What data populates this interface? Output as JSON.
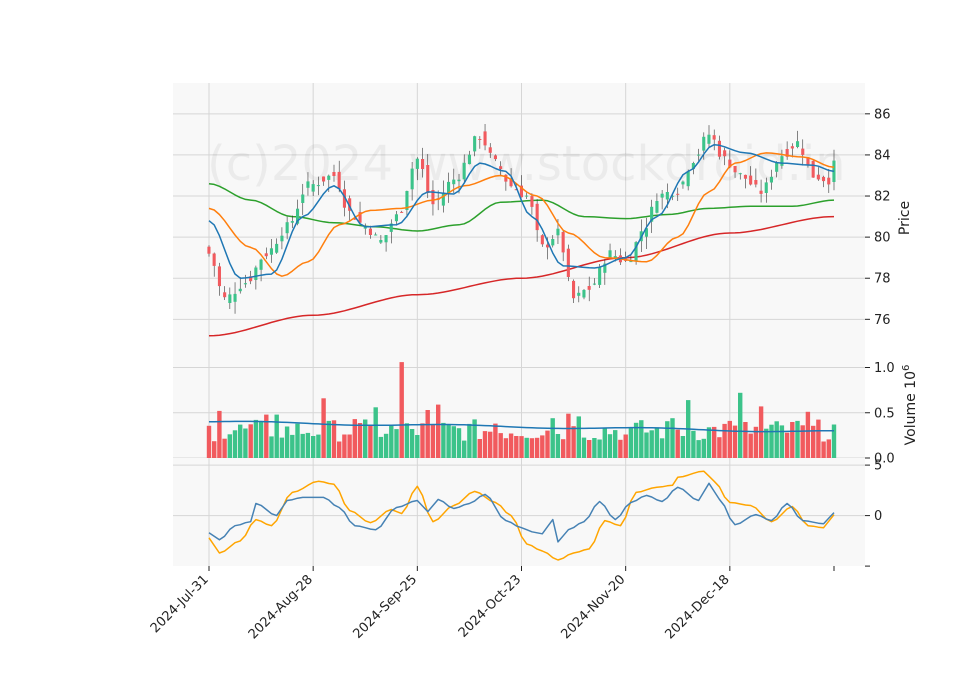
{
  "chart_data": {
    "type": "candlestick",
    "watermark": "(c)2024 www.stockdroid.in",
    "x_tick_labels": [
      "2024-Jul-31",
      "2024-Aug-28",
      "2024-Sep-25",
      "2024-Oct-23",
      "2024-Nov-20",
      "2024-Dec-18"
    ],
    "x_tick_index": [
      0,
      20,
      40,
      60,
      80,
      100
    ],
    "n_bars": 121,
    "colors": {
      "up": "#3cc38a",
      "down": "#f15a5e",
      "grid": "#d6d6d6",
      "panel_bg": "#f8f8f8",
      "ma_short": "#1f77b4",
      "ma_mid": "#ff7f0e",
      "ma_long": "#2ca02c",
      "ma_200": "#d62728",
      "osc_line": "#4682b4",
      "osc_signal": "#ffa500",
      "vol_ma": "#1f77b4"
    },
    "price_panel": {
      "ylabel": "Price",
      "ylim": [
        75,
        87.5
      ],
      "yticks": [
        76,
        78,
        80,
        82,
        84,
        86
      ],
      "anchors_close": [
        [
          0,
          79.2
        ],
        [
          3,
          77.0
        ],
        [
          7,
          77.8
        ],
        [
          11,
          79.2
        ],
        [
          15,
          80.5
        ],
        [
          19,
          82.5
        ],
        [
          24,
          83.0
        ],
        [
          27,
          81.2
        ],
        [
          30,
          80.5
        ],
        [
          33,
          79.8
        ],
        [
          36,
          81.0
        ],
        [
          40,
          83.8
        ],
        [
          43,
          81.6
        ],
        [
          47,
          82.8
        ],
        [
          52,
          84.9
        ],
        [
          55,
          83.6
        ],
        [
          58,
          82.5
        ],
        [
          61,
          82.0
        ],
        [
          64,
          79.5
        ],
        [
          67,
          80.2
        ],
        [
          70,
          77.0
        ],
        [
          73,
          77.5
        ],
        [
          77,
          79.2
        ],
        [
          80,
          78.8
        ],
        [
          84,
          80.6
        ],
        [
          86,
          82.0
        ],
        [
          90,
          82.3
        ],
        [
          93,
          83.8
        ],
        [
          96,
          85.0
        ],
        [
          99,
          83.8
        ],
        [
          102,
          83.0
        ],
        [
          106,
          82.2
        ],
        [
          110,
          84.0
        ],
        [
          113,
          84.6
        ],
        [
          116,
          83.0
        ],
        [
          119,
          82.8
        ],
        [
          120,
          83.5
        ]
      ],
      "ma_short_anchors": [
        [
          0,
          80.8
        ],
        [
          6,
          78.0
        ],
        [
          12,
          78.2
        ],
        [
          18,
          81.0
        ],
        [
          24,
          82.5
        ],
        [
          30,
          80.5
        ],
        [
          36,
          80.6
        ],
        [
          42,
          82.2
        ],
        [
          47,
          82.1
        ],
        [
          52,
          83.6
        ],
        [
          57,
          83.2
        ],
        [
          62,
          81.0
        ],
        [
          68,
          78.6
        ],
        [
          74,
          78.5
        ],
        [
          80,
          79.0
        ],
        [
          86,
          81.0
        ],
        [
          92,
          83.2
        ],
        [
          97,
          84.5
        ],
        [
          103,
          84.1
        ],
        [
          110,
          83.6
        ],
        [
          116,
          83.5
        ],
        [
          120,
          83.2
        ]
      ],
      "ma_mid_anchors": [
        [
          0,
          81.4
        ],
        [
          8,
          79.5
        ],
        [
          14,
          78.1
        ],
        [
          19,
          78.8
        ],
        [
          25,
          80.6
        ],
        [
          31,
          81.3
        ],
        [
          37,
          81.4
        ],
        [
          43,
          81.8
        ],
        [
          49,
          82.5
        ],
        [
          56,
          83.0
        ],
        [
          63,
          82.0
        ],
        [
          69,
          80.2
        ],
        [
          76,
          79.0
        ],
        [
          84,
          78.8
        ],
        [
          90,
          80.0
        ],
        [
          96,
          82.2
        ],
        [
          101,
          83.6
        ],
        [
          107,
          84.1
        ],
        [
          114,
          83.9
        ],
        [
          120,
          83.4
        ]
      ],
      "ma_long_anchors": [
        [
          0,
          82.6
        ],
        [
          8,
          81.8
        ],
        [
          16,
          81.0
        ],
        [
          24,
          80.7
        ],
        [
          32,
          80.5
        ],
        [
          40,
          80.3
        ],
        [
          48,
          80.6
        ],
        [
          56,
          81.7
        ],
        [
          64,
          81.8
        ],
        [
          72,
          81.0
        ],
        [
          80,
          80.9
        ],
        [
          88,
          81.1
        ],
        [
          96,
          81.4
        ],
        [
          104,
          81.5
        ],
        [
          112,
          81.5
        ],
        [
          120,
          81.8
        ]
      ],
      "ma_200_anchors": [
        [
          0,
          75.2
        ],
        [
          20,
          76.2
        ],
        [
          40,
          77.2
        ],
        [
          60,
          78.0
        ],
        [
          80,
          79.0
        ],
        [
          100,
          80.2
        ],
        [
          120,
          81.0
        ]
      ]
    },
    "volume_panel": {
      "ylabel": "Volume  10^6",
      "ylim": [
        0,
        1.1
      ],
      "yticks": [
        0.0,
        0.5,
        1.0
      ],
      "ytick_labels": [
        "0.0",
        "0.5",
        "1.0"
      ],
      "exponent_label": "10",
      "exponent_power": "6",
      "typical_volume": 0.33,
      "spikes": [
        [
          2,
          0.52
        ],
        [
          11,
          0.48
        ],
        [
          13,
          0.48
        ],
        [
          22,
          0.66
        ],
        [
          28,
          0.43
        ],
        [
          32,
          0.56
        ],
        [
          37,
          1.06
        ],
        [
          42,
          0.53
        ],
        [
          44,
          0.59
        ],
        [
          55,
          0.38
        ],
        [
          66,
          0.44
        ],
        [
          69,
          0.49
        ],
        [
          71,
          0.46
        ],
        [
          80,
          0.26
        ],
        [
          89,
          0.44
        ],
        [
          92,
          0.64
        ],
        [
          100,
          0.41
        ],
        [
          102,
          0.72
        ],
        [
          106,
          0.57
        ],
        [
          113,
          0.41
        ],
        [
          115,
          0.51
        ],
        [
          120,
          0.37
        ]
      ],
      "ma_start": 0.4,
      "ma_end": 0.29
    },
    "oscillator_panel": {
      "yticks": [
        -5,
        0,
        5
      ],
      "ytick_labels": [
        "",
        "0",
        "5"
      ],
      "ylim": [
        -5,
        5
      ],
      "line_anchors": [
        [
          0,
          -1.7
        ],
        [
          2,
          -2.4
        ],
        [
          5,
          -1.0
        ],
        [
          8,
          -0.6
        ],
        [
          9,
          1.2
        ],
        [
          13,
          0.0
        ],
        [
          15,
          1.5
        ],
        [
          18,
          1.8
        ],
        [
          22,
          1.8
        ],
        [
          25,
          0.8
        ],
        [
          28,
          -1.0
        ],
        [
          32,
          -1.4
        ],
        [
          36,
          0.8
        ],
        [
          40,
          1.5
        ],
        [
          42,
          0.4
        ],
        [
          44,
          1.6
        ],
        [
          47,
          0.7
        ],
        [
          50,
          1.2
        ],
        [
          53,
          2.1
        ],
        [
          57,
          -0.5
        ],
        [
          60,
          -1.2
        ],
        [
          62,
          -1.6
        ],
        [
          64,
          -1.8
        ],
        [
          66,
          -0.4
        ],
        [
          67,
          -2.6
        ],
        [
          69,
          -1.4
        ],
        [
          72,
          -0.6
        ],
        [
          75,
          1.4
        ],
        [
          78,
          -0.4
        ],
        [
          81,
          1.3
        ],
        [
          84,
          2.0
        ],
        [
          87,
          1.4
        ],
        [
          90,
          2.8
        ],
        [
          94,
          1.5
        ],
        [
          96,
          3.2
        ],
        [
          98,
          1.6
        ],
        [
          101,
          -0.9
        ],
        [
          105,
          0.1
        ],
        [
          108,
          -0.5
        ],
        [
          111,
          1.2
        ],
        [
          114,
          -0.5
        ],
        [
          118,
          -0.8
        ],
        [
          120,
          0.3
        ]
      ],
      "signal_anchors": [
        [
          0,
          -2.2
        ],
        [
          2,
          -3.7
        ],
        [
          6,
          -2.5
        ],
        [
          9,
          -0.4
        ],
        [
          12,
          -1.0
        ],
        [
          16,
          2.3
        ],
        [
          21,
          3.4
        ],
        [
          24,
          3.1
        ],
        [
          27,
          0.5
        ],
        [
          31,
          -0.7
        ],
        [
          35,
          0.6
        ],
        [
          37,
          0.2
        ],
        [
          40,
          2.9
        ],
        [
          43,
          -0.6
        ],
        [
          47,
          1.0
        ],
        [
          51,
          2.4
        ],
        [
          55,
          1.3
        ],
        [
          58,
          0.0
        ],
        [
          61,
          -2.8
        ],
        [
          64,
          -3.5
        ],
        [
          67,
          -4.4
        ],
        [
          70,
          -3.7
        ],
        [
          73,
          -3.3
        ],
        [
          76,
          -0.5
        ],
        [
          79,
          -1.0
        ],
        [
          82,
          2.3
        ],
        [
          86,
          2.8
        ],
        [
          89,
          3.0
        ],
        [
          90,
          3.8
        ],
        [
          95,
          4.4
        ],
        [
          97,
          3.4
        ],
        [
          100,
          1.3
        ],
        [
          104,
          1.0
        ],
        [
          108,
          -0.6
        ],
        [
          112,
          0.9
        ],
        [
          115,
          -1.0
        ],
        [
          118,
          -1.2
        ],
        [
          120,
          0.1
        ]
      ]
    }
  }
}
